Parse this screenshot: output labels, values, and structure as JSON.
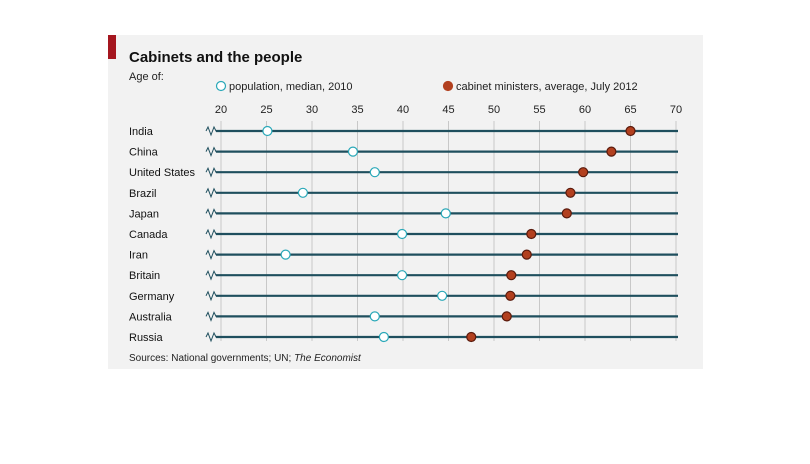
{
  "chart_data": {
    "type": "scatter",
    "title": "Cabinets and the people",
    "subtitle": "Age of:",
    "xlim": [
      20,
      70
    ],
    "xticks": [
      20,
      25,
      30,
      35,
      40,
      45,
      50,
      55,
      60,
      65,
      70
    ],
    "categories": [
      "India",
      "China",
      "United States",
      "Brazil",
      "Japan",
      "Canada",
      "Iran",
      "Britain",
      "Germany",
      "Australia",
      "Russia"
    ],
    "series": [
      {
        "name": "population, median, 2010",
        "color": "#29a8b8",
        "values": [
          25.1,
          34.5,
          36.9,
          29.0,
          44.7,
          39.9,
          27.1,
          39.9,
          44.3,
          36.9,
          37.9
        ]
      },
      {
        "name": "cabinet ministers, average, July 2012",
        "color": "#b2401f",
        "values": [
          65.0,
          62.9,
          59.8,
          58.4,
          58.0,
          54.1,
          53.6,
          51.9,
          51.8,
          51.4,
          47.5
        ]
      }
    ],
    "source_prefix": "Sources: National governments; UN; ",
    "source_italic": "The Economist",
    "accent_color": "#a5161f"
  }
}
